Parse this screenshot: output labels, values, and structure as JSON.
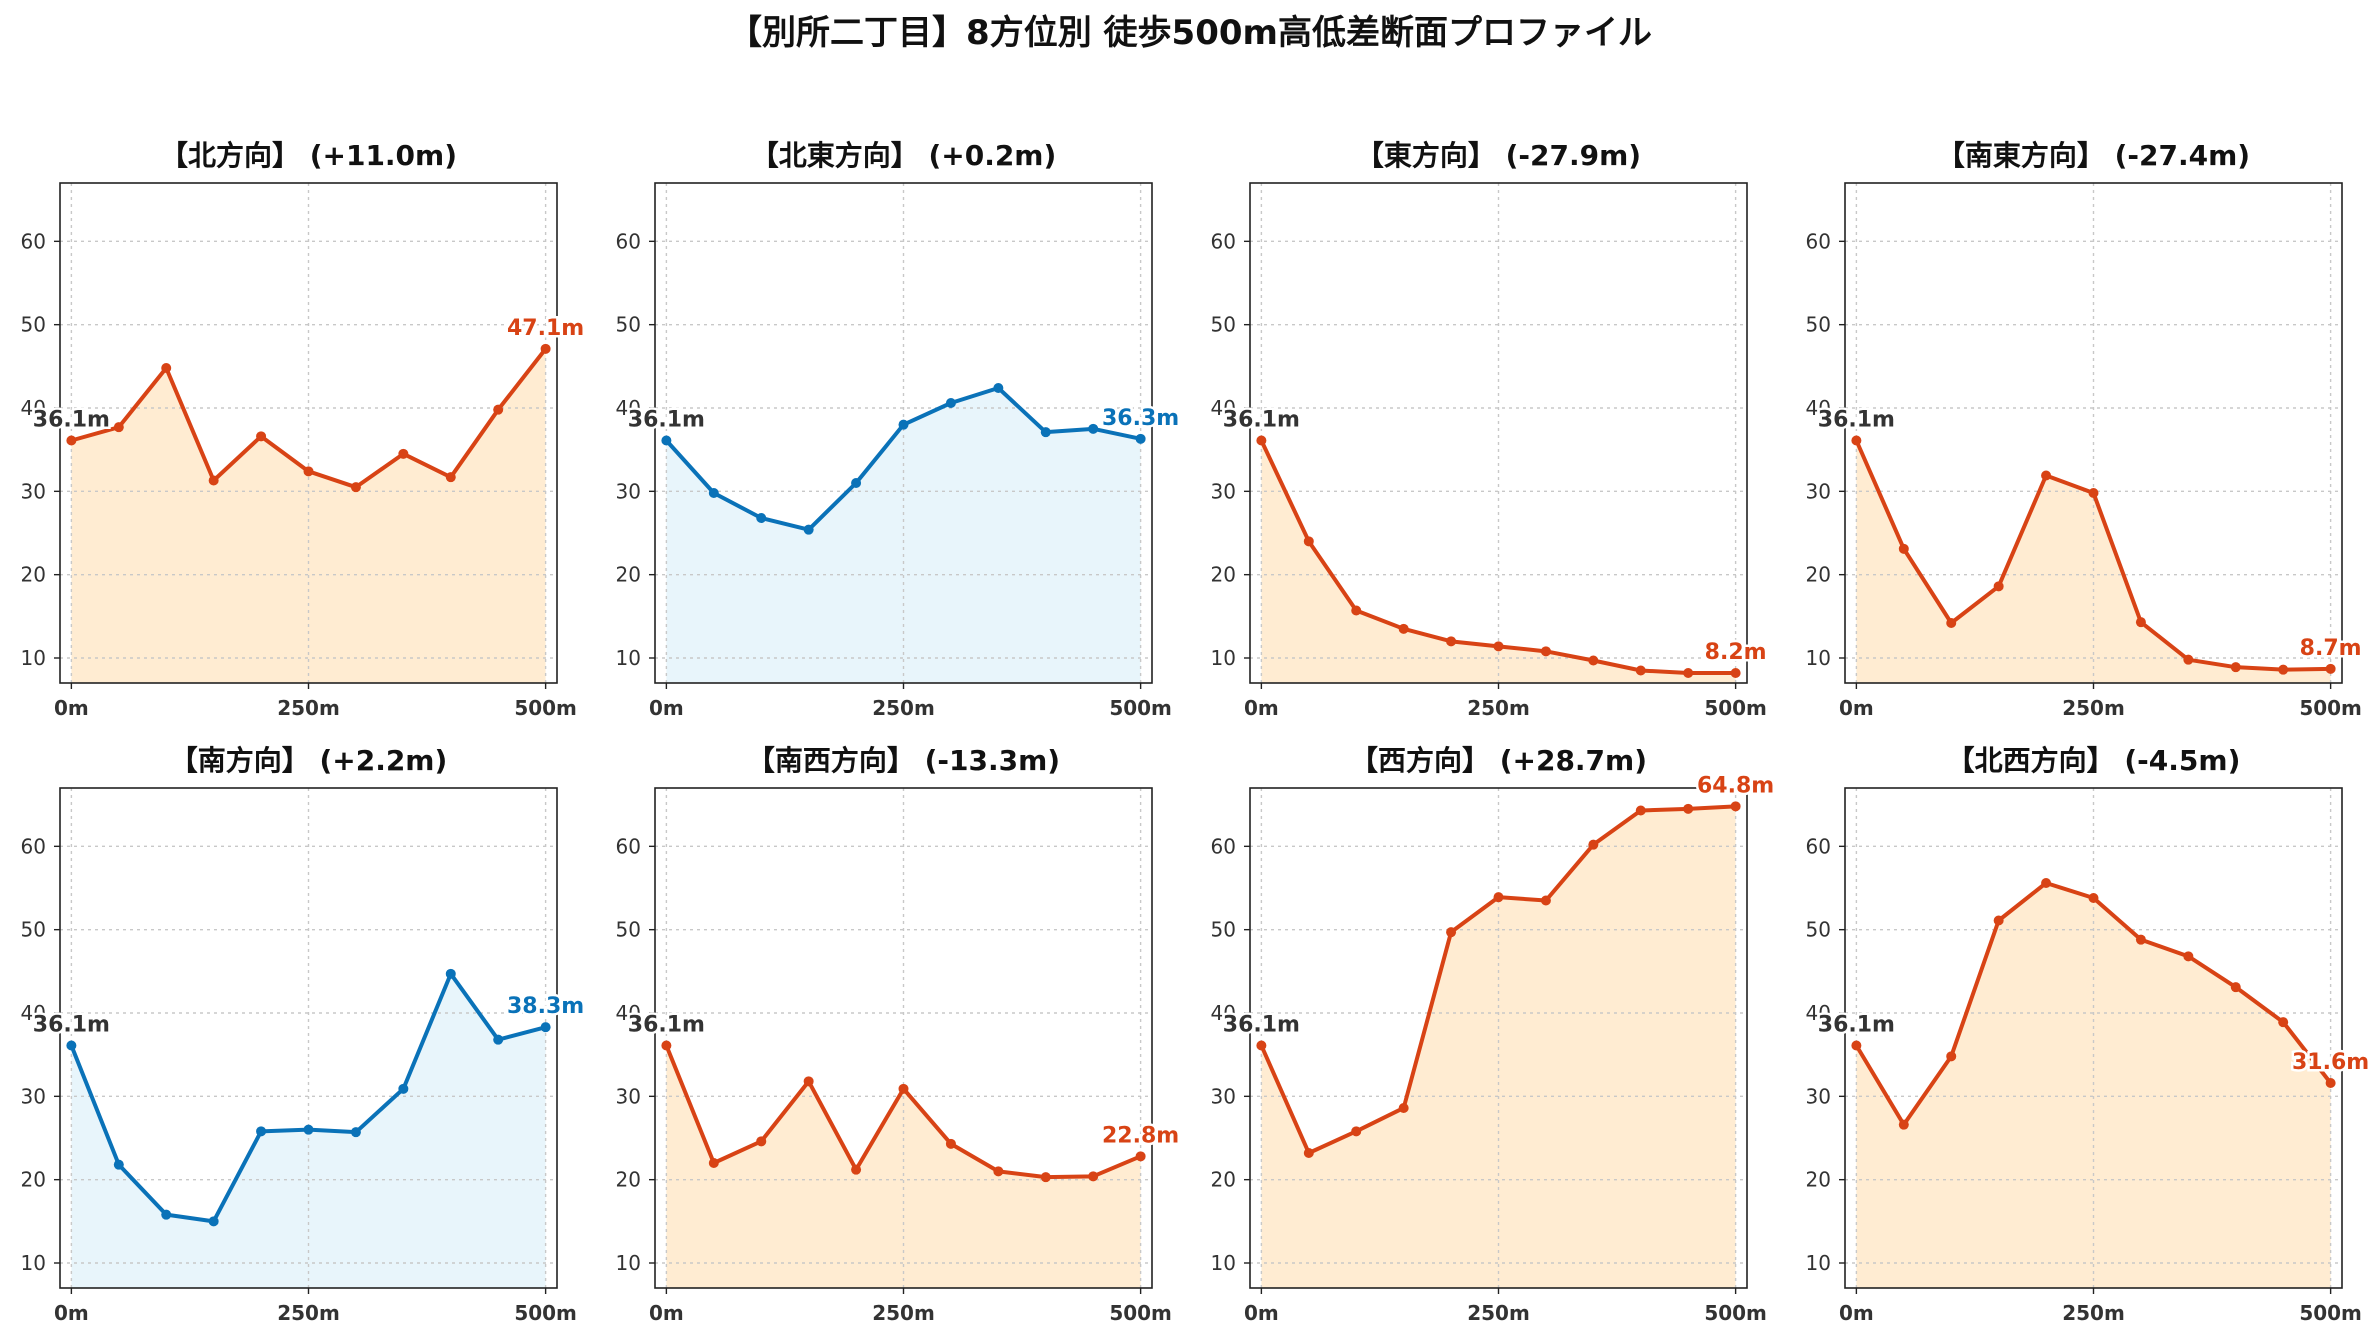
{
  "title": "【別所二丁目】8方位別 徒歩500m高低差断面プロファイル",
  "colors": {
    "up_line": "#d84315",
    "up_fill": "#ffecd2",
    "down_line": "#0a72b8",
    "down_fill": "#e8f5fb",
    "start_text": "#333333"
  },
  "chart_data": [
    {
      "type": "area",
      "title": "【北方向】 (+11.0m)",
      "line_color": "up",
      "x": [
        0,
        50,
        100,
        150,
        200,
        250,
        300,
        350,
        400,
        450,
        500
      ],
      "values": [
        36.1,
        37.7,
        44.8,
        31.3,
        36.6,
        32.4,
        30.5,
        34.5,
        31.7,
        39.8,
        47.1
      ],
      "start_label": "36.1m",
      "end_label": "47.1m",
      "xticks": [
        "0m",
        "250m",
        "500m"
      ],
      "yticks": [
        "10",
        "20",
        "30",
        "40",
        "50",
        "60"
      ],
      "ylim": [
        7,
        67
      ],
      "xlim": [
        -12,
        512
      ],
      "grid": true
    },
    {
      "type": "area",
      "title": "【北東方向】 (+0.2m)",
      "line_color": "down",
      "x": [
        0,
        50,
        100,
        150,
        200,
        250,
        300,
        350,
        400,
        450,
        500
      ],
      "values": [
        36.1,
        29.8,
        26.8,
        25.4,
        31.0,
        38.0,
        40.6,
        42.4,
        37.1,
        37.5,
        36.3
      ],
      "start_label": "36.1m",
      "end_label": "36.3m",
      "xticks": [
        "0m",
        "250m",
        "500m"
      ],
      "yticks": [
        "10",
        "20",
        "30",
        "40",
        "50",
        "60"
      ],
      "ylim": [
        7,
        67
      ],
      "xlim": [
        -12,
        512
      ],
      "grid": true
    },
    {
      "type": "area",
      "title": "【東方向】 (-27.9m)",
      "line_color": "up",
      "x": [
        0,
        50,
        100,
        150,
        200,
        250,
        300,
        350,
        400,
        450,
        500
      ],
      "values": [
        36.1,
        24.0,
        15.7,
        13.5,
        12.0,
        11.4,
        10.8,
        9.7,
        8.5,
        8.2,
        8.2
      ],
      "start_label": "36.1m",
      "end_label": "8.2m",
      "xticks": [
        "0m",
        "250m",
        "500m"
      ],
      "yticks": [
        "10",
        "20",
        "30",
        "40",
        "50",
        "60"
      ],
      "ylim": [
        7,
        67
      ],
      "xlim": [
        -12,
        512
      ],
      "grid": true
    },
    {
      "type": "area",
      "title": "【南東方向】 (-27.4m)",
      "line_color": "up",
      "x": [
        0,
        50,
        100,
        150,
        200,
        250,
        300,
        350,
        400,
        450,
        500
      ],
      "values": [
        36.1,
        23.1,
        14.2,
        18.6,
        31.9,
        29.8,
        14.3,
        9.8,
        8.9,
        8.6,
        8.7
      ],
      "start_label": "36.1m",
      "end_label": "8.7m",
      "xticks": [
        "0m",
        "250m",
        "500m"
      ],
      "yticks": [
        "10",
        "20",
        "30",
        "40",
        "50",
        "60"
      ],
      "ylim": [
        7,
        67
      ],
      "xlim": [
        -12,
        512
      ],
      "grid": true
    },
    {
      "type": "area",
      "title": "【南方向】 (+2.2m)",
      "line_color": "down",
      "x": [
        0,
        50,
        100,
        150,
        200,
        250,
        300,
        350,
        400,
        450,
        500
      ],
      "values": [
        36.1,
        21.8,
        15.8,
        15.0,
        25.8,
        26.0,
        25.7,
        30.9,
        44.7,
        36.8,
        38.3
      ],
      "start_label": "36.1m",
      "end_label": "38.3m",
      "xticks": [
        "0m",
        "250m",
        "500m"
      ],
      "yticks": [
        "10",
        "20",
        "30",
        "40",
        "50",
        "60"
      ],
      "ylim": [
        7,
        67
      ],
      "xlim": [
        -12,
        512
      ],
      "grid": true
    },
    {
      "type": "area",
      "title": "【南西方向】 (-13.3m)",
      "line_color": "up",
      "x": [
        0,
        50,
        100,
        150,
        200,
        250,
        300,
        350,
        400,
        450,
        500
      ],
      "values": [
        36.1,
        22.0,
        24.6,
        31.8,
        21.2,
        30.9,
        24.3,
        21.0,
        20.3,
        20.4,
        22.8
      ],
      "start_label": "36.1m",
      "end_label": "22.8m",
      "xticks": [
        "0m",
        "250m",
        "500m"
      ],
      "yticks": [
        "10",
        "20",
        "30",
        "40",
        "50",
        "60"
      ],
      "ylim": [
        7,
        67
      ],
      "xlim": [
        -12,
        512
      ],
      "grid": true
    },
    {
      "type": "area",
      "title": "【西方向】 (+28.7m)",
      "line_color": "up",
      "x": [
        0,
        50,
        100,
        150,
        200,
        250,
        300,
        350,
        400,
        450,
        500
      ],
      "values": [
        36.1,
        23.2,
        25.8,
        28.6,
        49.7,
        53.9,
        53.5,
        60.2,
        64.3,
        64.5,
        64.8
      ],
      "start_label": "36.1m",
      "end_label": "64.8m",
      "xticks": [
        "0m",
        "250m",
        "500m"
      ],
      "yticks": [
        "10",
        "20",
        "30",
        "40",
        "50",
        "60"
      ],
      "ylim": [
        7,
        67
      ],
      "xlim": [
        -12,
        512
      ],
      "grid": true
    },
    {
      "type": "area",
      "title": "【北西方向】 (-4.5m)",
      "line_color": "up",
      "x": [
        0,
        50,
        100,
        150,
        200,
        250,
        300,
        350,
        400,
        450,
        500
      ],
      "values": [
        36.1,
        26.6,
        34.8,
        51.1,
        55.6,
        53.8,
        48.8,
        46.8,
        43.1,
        38.9,
        31.6
      ],
      "start_label": "36.1m",
      "end_label": "31.6m",
      "xticks": [
        "0m",
        "250m",
        "500m"
      ],
      "yticks": [
        "10",
        "20",
        "30",
        "40",
        "50",
        "60"
      ],
      "ylim": [
        7,
        67
      ],
      "xlim": [
        -12,
        512
      ],
      "grid": true
    }
  ]
}
